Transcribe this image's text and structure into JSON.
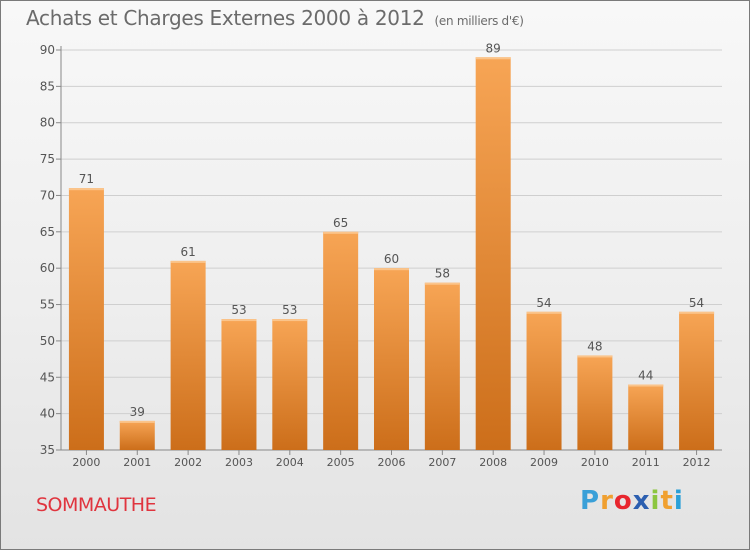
{
  "title": "Achats et Charges Externes 2000 à 2012",
  "unit_note": "(en milliers d'€)",
  "commune": "SOMMAUTHE",
  "brand": {
    "letters": [
      "P",
      "r",
      "o",
      "x",
      "i",
      "t",
      "i"
    ],
    "colors": [
      "#3aa0d8",
      "#f0a030",
      "#e8262e",
      "#2c5fb0",
      "#8cc63f",
      "#f0a030",
      "#2aa0d8"
    ]
  },
  "colors": {
    "bar_top": "#f7a555",
    "bar_bottom": "#cc6e1a",
    "grid": "#cfcfcf",
    "axis_text": "#555555",
    "commune": "#e0343e"
  },
  "chart_data": {
    "type": "bar",
    "categories": [
      "2000",
      "2001",
      "2002",
      "2003",
      "2004",
      "2005",
      "2006",
      "2007",
      "2008",
      "2009",
      "2010",
      "2011",
      "2012"
    ],
    "values": [
      71,
      39,
      61,
      53,
      53,
      65,
      60,
      58,
      89,
      54,
      48,
      44,
      54
    ],
    "title": "Achats et Charges Externes 2000 à 2012",
    "xlabel": "",
    "ylabel": "",
    "ylim": [
      35,
      90
    ],
    "yticks": [
      35,
      40,
      45,
      50,
      55,
      60,
      65,
      70,
      75,
      80,
      85,
      90
    ],
    "grid": true,
    "data_labels": true
  }
}
